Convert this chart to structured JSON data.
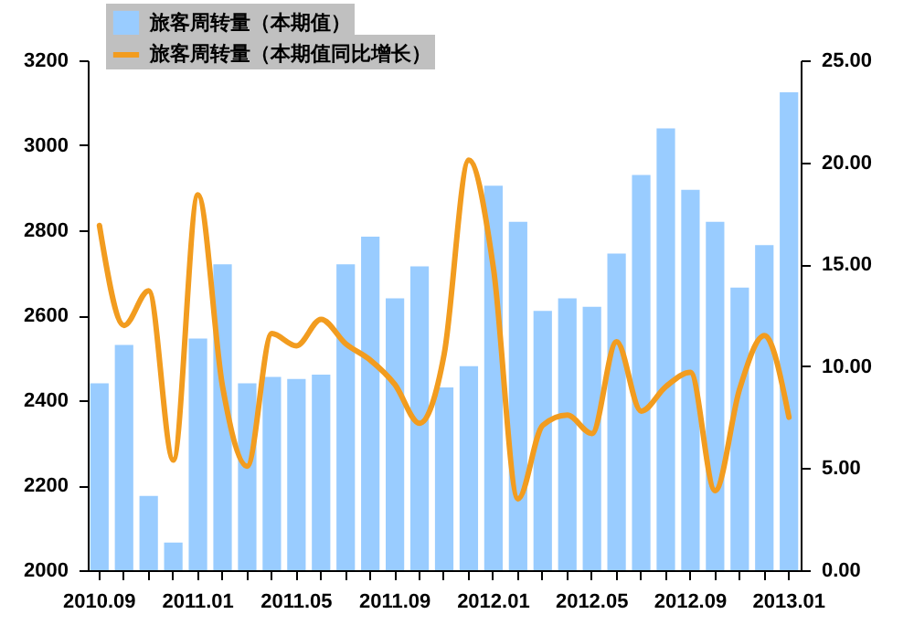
{
  "chart_data": {
    "type": "bar",
    "categories": [
      "2010.09",
      null,
      null,
      null,
      "2011.01",
      null,
      null,
      null,
      "2011.05",
      null,
      null,
      null,
      "2011.09",
      null,
      null,
      null,
      "2012.01",
      null,
      null,
      null,
      "2012.05",
      null,
      null,
      null,
      "2012.09",
      null,
      null,
      null,
      "2013.01"
    ],
    "series": [
      {
        "name": "旅客周转量（本期值）",
        "color": "#99ccff",
        "values": [
          2440,
          2530,
          2175,
          2065,
          2545,
          2720,
          2440,
          2455,
          2450,
          2460,
          2720,
          2785,
          2640,
          2715,
          2430,
          2480,
          2905,
          2820,
          2610,
          2640,
          2620,
          2745,
          2930,
          3040,
          2895,
          2820,
          2665,
          2765,
          3125
        ]
      },
      {
        "name": "旅客周转量（本期值同比增长）",
        "type": "line",
        "axis": "y2",
        "color": "#f29c1f",
        "values": [
          16.9,
          12.0,
          13.7,
          5.4,
          18.4,
          9.0,
          5.1,
          11.6,
          11.0,
          12.3,
          11.1,
          10.3,
          9.1,
          7.2,
          10.6,
          20.1,
          14.8,
          3.5,
          7.1,
          7.6,
          6.7,
          11.2,
          7.8,
          9.0,
          9.7,
          3.9,
          8.9,
          11.5,
          7.5
        ]
      }
    ],
    "ylim": [
      2000,
      3200
    ],
    "yticks": [
      2000,
      2200,
      2400,
      2600,
      2800,
      3000,
      3200
    ],
    "y2lim": [
      0,
      25
    ],
    "y2ticks": [
      {
        "value": 0,
        "label": "0.00"
      },
      {
        "value": 5,
        "label": "5.00"
      },
      {
        "value": 10,
        "label": "10.00"
      },
      {
        "value": 15,
        "label": "15.00"
      },
      {
        "value": 20,
        "label": "20.00"
      },
      {
        "value": 25,
        "label": "25.00"
      }
    ],
    "legend": "top left",
    "grid": false
  }
}
